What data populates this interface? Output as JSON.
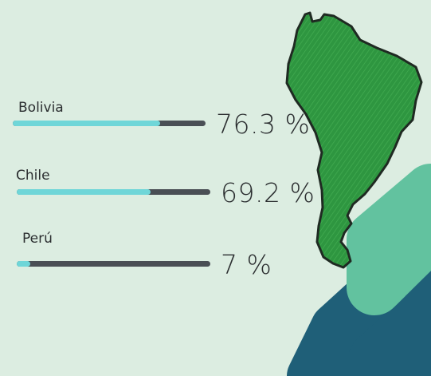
{
  "colors": {
    "background": "#dcede1",
    "bar_fill": "#6fd6d8",
    "bar_track": "#4a4f55",
    "continent_fill": "#2e9640",
    "continent_outline": "#1f2a22",
    "stripe_light": "#62c29f",
    "stripe_dark": "#1f5f78",
    "text": "#2b2e30"
  },
  "chart_data": {
    "type": "bar",
    "orientation": "horizontal",
    "categories": [
      "Bolivia",
      "Chile",
      "Perú"
    ],
    "values": [
      76.3,
      69.2,
      7
    ],
    "value_labels": [
      "76.3 %",
      "69.2 %",
      "7 %"
    ],
    "unit": "%",
    "xlim": [
      0,
      100
    ],
    "grid": false,
    "legend": "none"
  },
  "illustration": {
    "icon": "south-america-map-icon"
  }
}
